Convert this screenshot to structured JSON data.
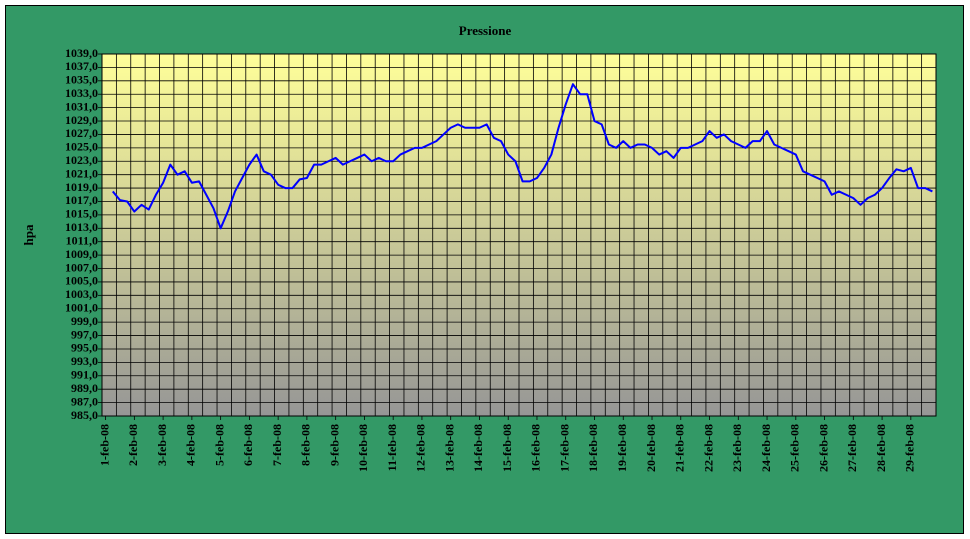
{
  "chart_data": {
    "type": "line",
    "title": "Pressione",
    "y_label": "hpa",
    "categories": [
      "1-feb-08",
      null,
      null,
      null,
      "2-feb-08",
      null,
      null,
      null,
      "3-feb-08",
      null,
      null,
      null,
      "4-feb-08",
      null,
      null,
      null,
      "5-feb-08",
      null,
      null,
      null,
      "6-feb-08",
      null,
      null,
      null,
      "7-feb-08",
      null,
      null,
      null,
      "8-feb-08",
      null,
      null,
      null,
      "9-feb-08",
      null,
      null,
      null,
      "10-feb-08",
      null,
      null,
      null,
      "11-feb-08",
      null,
      null,
      null,
      "12-feb-08",
      null,
      null,
      null,
      "13-feb-08",
      null,
      null,
      null,
      "14-feb-08",
      null,
      null,
      null,
      "15-feb-08",
      null,
      null,
      null,
      "16-feb-08",
      null,
      null,
      null,
      "17-feb-08",
      null,
      null,
      null,
      "18-feb-08",
      null,
      null,
      null,
      "19-feb-08",
      null,
      null,
      null,
      "20-feb-08",
      null,
      null,
      null,
      "21-feb-08",
      null,
      null,
      null,
      "22-feb-08",
      null,
      null,
      null,
      "23-feb-08",
      null,
      null,
      null,
      "24-feb-08",
      null,
      null,
      null,
      "25-feb-08",
      null,
      null,
      null,
      "26-feb-08",
      null,
      null,
      null,
      "27-feb-08",
      null,
      null,
      null,
      "28-feb-08",
      null,
      null,
      null,
      "29-feb-08",
      null,
      null,
      null
    ],
    "series": [
      {
        "color": "#0000ff",
        "values": [
          null,
          1018.5,
          1017.2,
          1017,
          1015.5,
          1016.5,
          1015.8,
          1018,
          1019.8,
          1022.5,
          1021,
          1021.5,
          1019.8,
          1020,
          1018,
          1016,
          1013,
          1015.5,
          1018.5,
          1020.5,
          1022.5,
          1024,
          1021.5,
          1021,
          1019.5,
          1019,
          1019,
          1020.3,
          1020.5,
          1022.5,
          1022.5,
          1023,
          1023.5,
          1022.5,
          1023,
          1023.5,
          1024,
          1023,
          1023.5,
          1023,
          1023,
          1024,
          1024.5,
          1025,
          1025,
          1025.5,
          1026,
          1027,
          1028,
          1028.5,
          1028,
          1028,
          1028,
          1028.5,
          1026.5,
          1026,
          1024,
          1023,
          1020,
          1020,
          1020.5,
          1022,
          1024,
          1028,
          1031.5,
          1034.5,
          1033,
          1033,
          1029,
          1028.5,
          1025.5,
          1025,
          1026,
          1025,
          1025.5,
          1025.5,
          1025,
          1024,
          1024.5,
          1023.5,
          1025,
          1025,
          1025.5,
          1026,
          1027.5,
          1026.5,
          1027,
          1026,
          1025.5,
          1025,
          1026,
          1026,
          1027.5,
          1025.5,
          1025,
          1024.5,
          1024,
          1021.5,
          1021,
          1020.5,
          1020,
          1018,
          1018.5,
          1018,
          1017.5,
          1016.5,
          1017.5,
          1018,
          1019,
          1020.5,
          1021.8,
          1021.5,
          1022,
          1019,
          1019,
          1018.5
        ]
      }
    ],
    "ylim": [
      985,
      1039
    ],
    "yticks": [
      {
        "value": 985,
        "label": "985,0"
      },
      {
        "value": 987,
        "label": "987,0"
      },
      {
        "value": 989,
        "label": "989,0"
      },
      {
        "value": 991,
        "label": "991,0"
      },
      {
        "value": 993,
        "label": "993,0"
      },
      {
        "value": 995,
        "label": "995,0"
      },
      {
        "value": 997,
        "label": "997,0"
      },
      {
        "value": 999,
        "label": "999,0"
      },
      {
        "value": 1001,
        "label": "1001,0"
      },
      {
        "value": 1003,
        "label": "1003,0"
      },
      {
        "value": 1005,
        "label": "1005,0"
      },
      {
        "value": 1007,
        "label": "1007,0"
      },
      {
        "value": 1009,
        "label": "1009,0"
      },
      {
        "value": 1011,
        "label": "1011,0"
      },
      {
        "value": 1013,
        "label": "1013,0"
      },
      {
        "value": 1015,
        "label": "1015,0"
      },
      {
        "value": 1017,
        "label": "1017,0"
      },
      {
        "value": 1019,
        "label": "1019,0"
      },
      {
        "value": 1021,
        "label": "1021,0"
      },
      {
        "value": 1023,
        "label": "1023,0"
      },
      {
        "value": 1025,
        "label": "1025,0"
      },
      {
        "value": 1027,
        "label": "1027,0"
      },
      {
        "value": 1029,
        "label": "1029,0"
      },
      {
        "value": 1031,
        "label": "1031,0"
      },
      {
        "value": 1033,
        "label": "1033,0"
      },
      {
        "value": 1035,
        "label": "1035,0"
      },
      {
        "value": 1037,
        "label": "1037,0"
      },
      {
        "value": 1039,
        "label": "1039,0"
      }
    ],
    "grid": true
  }
}
